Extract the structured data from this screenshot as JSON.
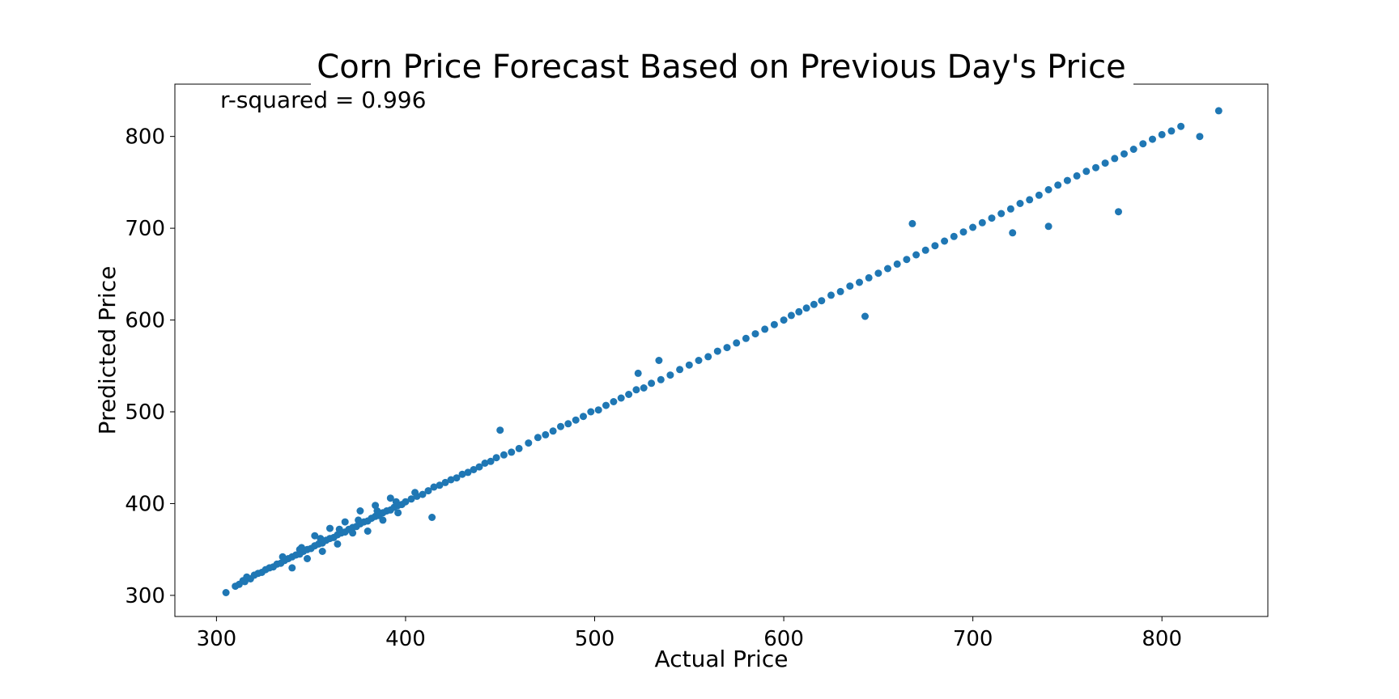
{
  "chart_data": {
    "type": "scatter",
    "title": "Corn Price Forecast Based on Previous Day's Price",
    "xlabel": "Actual Price",
    "ylabel": "Predicted Price",
    "annotation": "r-squared = 0.996",
    "xlim": [
      278,
      856
    ],
    "ylim": [
      277,
      857
    ],
    "xticks": [
      300,
      400,
      500,
      600,
      700,
      800
    ],
    "yticks": [
      300,
      400,
      500,
      600,
      700,
      800
    ],
    "xtick_labels": [
      "300",
      "400",
      "500",
      "600",
      "700",
      "800"
    ],
    "ytick_labels": [
      "300",
      "400",
      "500",
      "600",
      "700",
      "800"
    ],
    "grid": false,
    "color": "#1f77b4",
    "series": [
      {
        "x": [
          305,
          310,
          312,
          314,
          315,
          316,
          318,
          320,
          322,
          324,
          326,
          328,
          330,
          332,
          334,
          336,
          338,
          340,
          342,
          344,
          346,
          348,
          350,
          352,
          354,
          356,
          358,
          360,
          362,
          364,
          366,
          368,
          370,
          372,
          374,
          376,
          378,
          380,
          382,
          384,
          386,
          388,
          390,
          392,
          394,
          396,
          398,
          400,
          403,
          406,
          409,
          412,
          415,
          418,
          421,
          424,
          427,
          430,
          433,
          436,
          439,
          442,
          445,
          448,
          452,
          456,
          460,
          465,
          470,
          474,
          478,
          482,
          486,
          490,
          494,
          498,
          502,
          506,
          510,
          514,
          518,
          522,
          526,
          530,
          535,
          540,
          545,
          550,
          555,
          560,
          565,
          570,
          575,
          580,
          585,
          590,
          595,
          600,
          604,
          608,
          612,
          616,
          620,
          625,
          630,
          635,
          640,
          645,
          650,
          655,
          660,
          665,
          670,
          675,
          680,
          685,
          690,
          695,
          700,
          705,
          710,
          715,
          720,
          725,
          730,
          735,
          740,
          745,
          750,
          755,
          760,
          765,
          770,
          775,
          780,
          785,
          790,
          795,
          800,
          805,
          810,
          820,
          830,
          344,
          352,
          360,
          368,
          376,
          384,
          392,
          340,
          348,
          356,
          364,
          372,
          380,
          388,
          396,
          414,
          450,
          523,
          534,
          643,
          668,
          721,
          740,
          777,
          335,
          345,
          355,
          365,
          375,
          385,
          395,
          405
        ],
        "y": [
          303,
          310,
          312,
          316,
          315,
          320,
          318,
          322,
          324,
          325,
          328,
          330,
          331,
          334,
          335,
          338,
          340,
          342,
          344,
          345,
          348,
          350,
          351,
          354,
          356,
          357,
          360,
          362,
          363,
          366,
          368,
          369,
          372,
          374,
          375,
          378,
          380,
          381,
          384,
          386,
          387,
          390,
          392,
          393,
          396,
          398,
          399,
          402,
          405,
          408,
          410,
          414,
          418,
          420,
          423,
          426,
          428,
          432,
          434,
          437,
          440,
          444,
          446,
          450,
          453,
          456,
          460,
          466,
          472,
          475,
          479,
          484,
          487,
          491,
          495,
          500,
          502,
          507,
          511,
          515,
          519,
          524,
          526,
          531,
          535,
          540,
          546,
          551,
          556,
          560,
          566,
          570,
          575,
          580,
          585,
          590,
          595,
          600,
          605,
          609,
          613,
          617,
          621,
          627,
          631,
          637,
          641,
          646,
          651,
          656,
          661,
          666,
          671,
          676,
          681,
          686,
          691,
          696,
          701,
          706,
          711,
          716,
          721,
          727,
          731,
          736,
          742,
          747,
          752,
          757,
          762,
          766,
          771,
          776,
          781,
          786,
          792,
          797,
          802,
          806,
          811,
          800,
          828,
          350,
          365,
          373,
          380,
          392,
          398,
          406,
          330,
          340,
          348,
          356,
          368,
          370,
          382,
          390,
          385,
          480,
          542,
          556,
          604,
          705,
          695,
          702,
          718,
          342,
          352,
          362,
          372,
          382,
          392,
          402,
          412
        ]
      }
    ]
  }
}
